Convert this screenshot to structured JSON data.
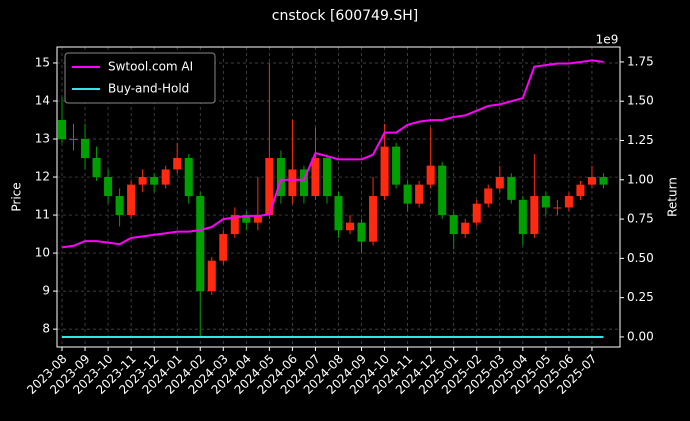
{
  "chart_data": {
    "type": "candlestick",
    "title": "cnstock [600749.SH]",
    "y_label": "Price",
    "y2_label": "Return",
    "y2_offset_label": "1e9",
    "categories": [
      "2023-08",
      null,
      "2023-09",
      null,
      "2023-10",
      null,
      "2023-11",
      null,
      "2023-12",
      null,
      "2024-01",
      null,
      "2024-02",
      null,
      "2024-03",
      null,
      "2024-04",
      null,
      "2024-05",
      null,
      "2024-06",
      null,
      "2024-07",
      null,
      "2024-08",
      null,
      "2024-09",
      null,
      "2024-10",
      null,
      "2024-11",
      null,
      "2024-12",
      null,
      "2025-01",
      null,
      "2025-02",
      null,
      "2025-03",
      null,
      "2025-04",
      null,
      "2025-05",
      null,
      "2025-06",
      null,
      "2025-07",
      null
    ],
    "open": [
      13.5,
      13.0,
      13.0,
      12.5,
      12.0,
      11.5,
      11.0,
      11.8,
      12.0,
      11.8,
      12.2,
      12.5,
      11.5,
      9.0,
      9.8,
      10.5,
      11.0,
      10.8,
      11.0,
      12.5,
      11.5,
      12.2,
      11.5,
      12.5,
      11.5,
      10.6,
      10.8,
      10.3,
      11.5,
      12.8,
      11.8,
      11.3,
      11.8,
      12.3,
      11.0,
      10.5,
      10.8,
      11.3,
      11.7,
      12.0,
      11.4,
      10.5,
      11.5,
      11.2,
      11.2,
      11.5,
      11.8,
      12.0
    ],
    "close": [
      13.0,
      13.0,
      12.5,
      12.0,
      11.5,
      11.0,
      11.8,
      12.0,
      11.8,
      12.2,
      12.5,
      11.5,
      9.0,
      9.8,
      10.5,
      11.0,
      10.8,
      11.0,
      12.5,
      11.5,
      12.2,
      11.5,
      12.5,
      11.5,
      10.6,
      10.8,
      10.3,
      11.5,
      12.8,
      11.8,
      11.3,
      11.8,
      12.3,
      11.0,
      10.5,
      10.8,
      11.3,
      11.7,
      12.0,
      11.4,
      10.5,
      11.5,
      11.2,
      11.2,
      11.5,
      11.8,
      12.0,
      11.8
    ],
    "high": [
      14.1,
      13.4,
      13.4,
      12.8,
      12.2,
      11.7,
      11.9,
      12.2,
      12.1,
      12.3,
      12.9,
      12.6,
      11.6,
      9.9,
      10.6,
      11.2,
      11.1,
      12.0,
      15.0,
      12.7,
      13.5,
      12.3,
      13.3,
      12.6,
      11.6,
      11.0,
      10.9,
      12.0,
      13.4,
      12.9,
      11.9,
      11.9,
      13.3,
      12.4,
      11.1,
      10.9,
      11.4,
      11.8,
      12.3,
      12.1,
      11.5,
      12.6,
      11.6,
      11.4,
      11.6,
      11.9,
      12.3,
      12.1
    ],
    "low": [
      12.9,
      12.7,
      12.2,
      11.9,
      11.3,
      10.7,
      10.9,
      11.6,
      11.6,
      11.7,
      12.1,
      11.3,
      7.8,
      8.9,
      9.7,
      10.4,
      10.6,
      10.6,
      10.9,
      11.3,
      11.3,
      11.3,
      11.4,
      11.3,
      10.4,
      10.5,
      10.0,
      10.2,
      11.4,
      11.7,
      11.1,
      11.2,
      11.7,
      10.9,
      10.1,
      10.4,
      10.7,
      11.2,
      11.6,
      11.3,
      10.2,
      10.4,
      11.0,
      11.0,
      11.1,
      11.4,
      11.7,
      11.7
    ],
    "up_color": "#ff2a10",
    "down_color": "#00a000",
    "series": [
      {
        "name": "Swtool.com AI",
        "color": "#ff00ff",
        "axis": "y2",
        "values": [
          0.57,
          0.58,
          0.61,
          0.61,
          0.6,
          0.59,
          0.63,
          0.64,
          0.65,
          0.66,
          0.67,
          0.67,
          0.68,
          0.7,
          0.75,
          0.76,
          0.77,
          0.77,
          0.78,
          1.0,
          1.0,
          1.0,
          1.17,
          1.15,
          1.13,
          1.13,
          1.13,
          1.16,
          1.3,
          1.3,
          1.35,
          1.37,
          1.38,
          1.38,
          1.4,
          1.41,
          1.44,
          1.47,
          1.48,
          1.5,
          1.52,
          1.72,
          1.73,
          1.74,
          1.74,
          1.75,
          1.76,
          1.75
        ]
      },
      {
        "name": "Buy-and-Hold",
        "color": "#33e6e6",
        "axis": "y2",
        "values": [
          0,
          0,
          0,
          0,
          0,
          0,
          0,
          0,
          0,
          0,
          0,
          0,
          0,
          0,
          0,
          0,
          0,
          0,
          0,
          0,
          0,
          0,
          0,
          0,
          0,
          0,
          0,
          0,
          0,
          0,
          0,
          0,
          0,
          0,
          0,
          0,
          0,
          0,
          0,
          0,
          0,
          0,
          0,
          0,
          0,
          0,
          0,
          0
        ]
      }
    ],
    "ylim": [
      7.53,
      15.42
    ],
    "yticks": [
      8,
      9,
      10,
      11,
      12,
      13,
      14,
      15
    ],
    "y2lim": [
      -0.064,
      1.845
    ],
    "y2ticks": [
      {
        "value": 0,
        "label": "0.00"
      },
      {
        "value": 0.25,
        "label": "0.25"
      },
      {
        "value": 0.5,
        "label": "0.50"
      },
      {
        "value": 0.75,
        "label": "0.75"
      },
      {
        "value": 1.0,
        "label": "1.00"
      },
      {
        "value": 1.25,
        "label": "1.25"
      },
      {
        "value": 1.5,
        "label": "1.50"
      },
      {
        "value": 1.75,
        "label": "1.75"
      }
    ],
    "grid": true,
    "legend": "upper left"
  }
}
